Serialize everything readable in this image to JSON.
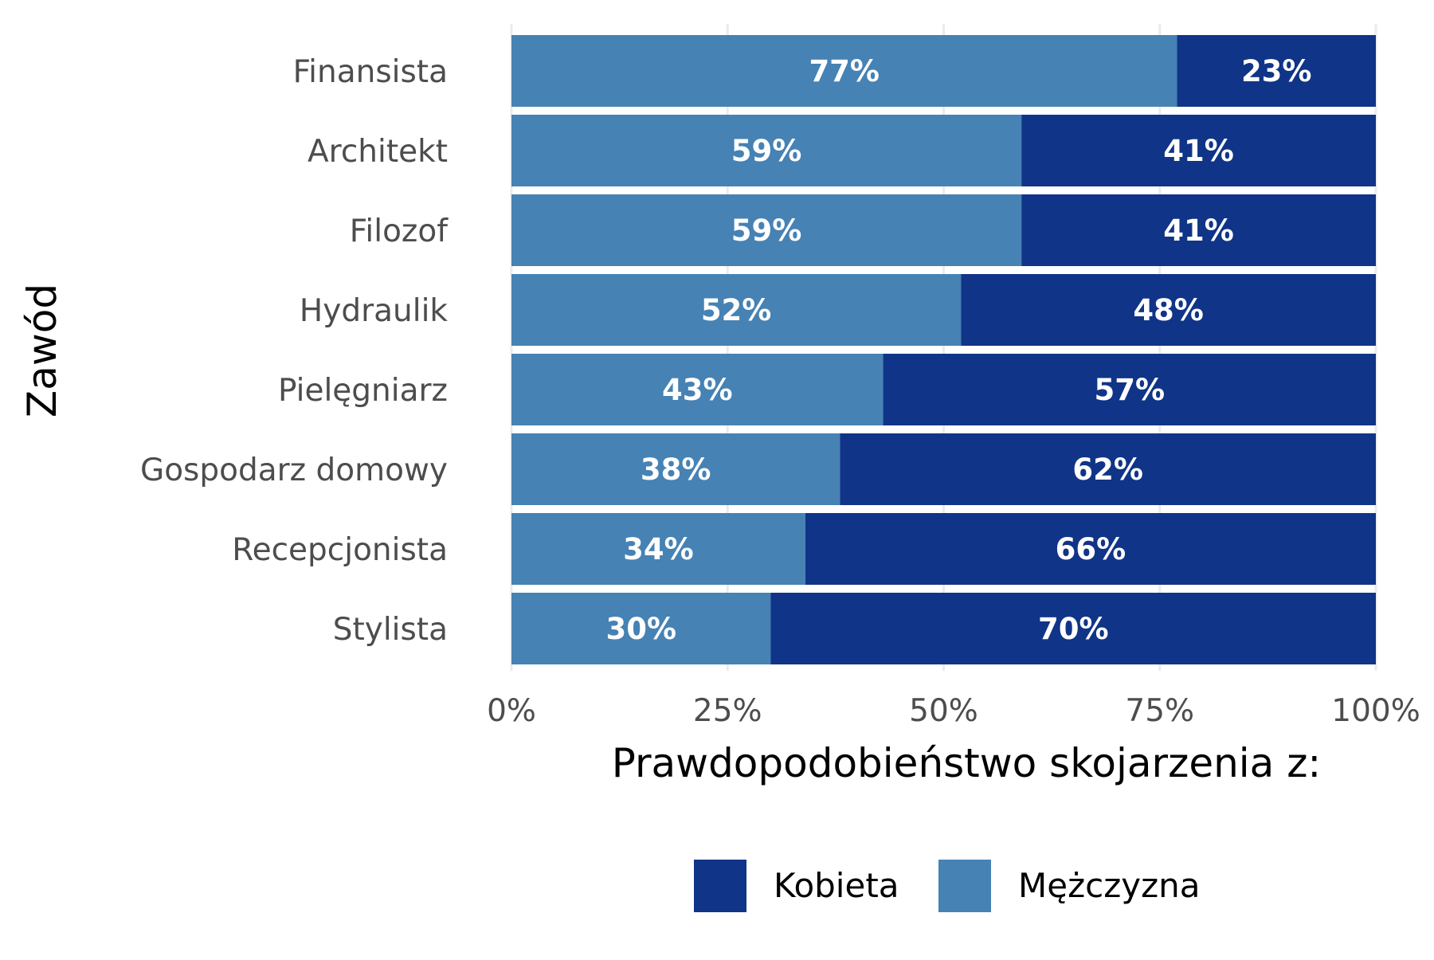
{
  "chart_data": {
    "type": "bar",
    "orientation": "horizontal",
    "stacked": true,
    "categories": [
      "Finansista",
      "Architekt",
      "Filozof",
      "Hydraulik",
      "Pielęgniarz",
      "Gospodarz domowy",
      "Recepcjonista",
      "Stylista"
    ],
    "series": [
      {
        "name": "Mężczyzna",
        "values": [
          77,
          59,
          59,
          52,
          43,
          38,
          34,
          30
        ],
        "labels": [
          "77%",
          "59%",
          "59%",
          "52%",
          "43%",
          "38%",
          "34%",
          "30%"
        ],
        "color": "#4682b4"
      },
      {
        "name": "Kobieta",
        "values": [
          23,
          41,
          41,
          48,
          57,
          62,
          66,
          70
        ],
        "labels": [
          "23%",
          "41%",
          "41%",
          "48%",
          "57%",
          "62%",
          "66%",
          "70%"
        ],
        "color": "#103487"
      }
    ],
    "xlim": [
      0,
      100
    ],
    "xticks": [
      0,
      25,
      50,
      75,
      100
    ],
    "xtick_labels": [
      "0%",
      "25%",
      "50%",
      "75%",
      "100%"
    ],
    "xlabel": "Prawdopodobieństwo skojarzenia z:",
    "ylabel": "Zawód",
    "grid": true,
    "legend": {
      "position": "bottom",
      "entries": [
        {
          "name": "Kobieta",
          "color": "#103487"
        },
        {
          "name": "Mężczyzna",
          "color": "#4682b4"
        }
      ]
    }
  }
}
